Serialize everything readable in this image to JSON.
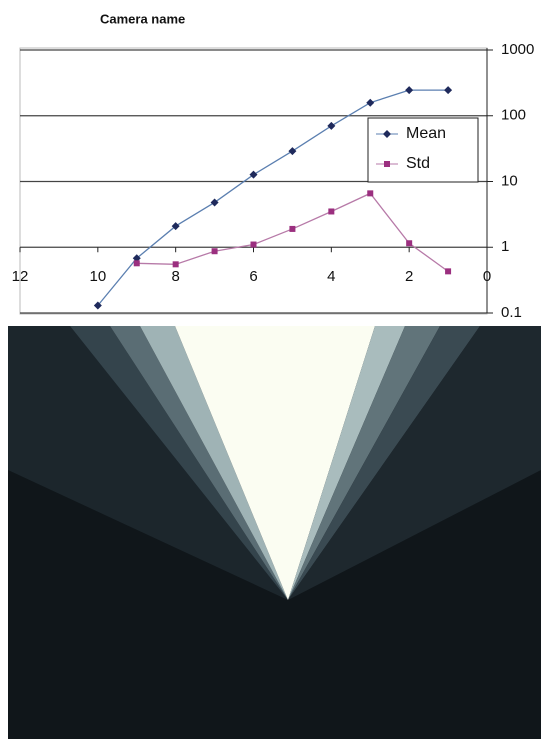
{
  "chart_data": {
    "type": "line",
    "title": "Camera name",
    "x": [
      10,
      9,
      8,
      7,
      6,
      5,
      4,
      3,
      2,
      1
    ],
    "series": [
      {
        "name": "Mean",
        "color": "#1f2a5c",
        "line_color": "#5b7fb0",
        "marker": "diamond",
        "values": [
          0.13,
          0.68,
          2.1,
          4.8,
          12.7,
          29,
          70,
          158,
          245,
          245
        ]
      },
      {
        "name": "Std",
        "color": "#9b2f7f",
        "line_color": "#b77aa8",
        "marker": "square",
        "values": [
          null,
          0.57,
          0.55,
          0.87,
          1.1,
          1.9,
          3.5,
          6.6,
          1.15,
          0.43
        ]
      }
    ],
    "xlim": [
      12,
      0
    ],
    "xticks": [
      12,
      10,
      8,
      6,
      4,
      2,
      0
    ],
    "ylim": [
      0.1,
      1000
    ],
    "yticks": [
      0.1,
      1,
      10,
      100,
      1000
    ],
    "yscale": "log",
    "grid": true,
    "legend": "right"
  }
}
